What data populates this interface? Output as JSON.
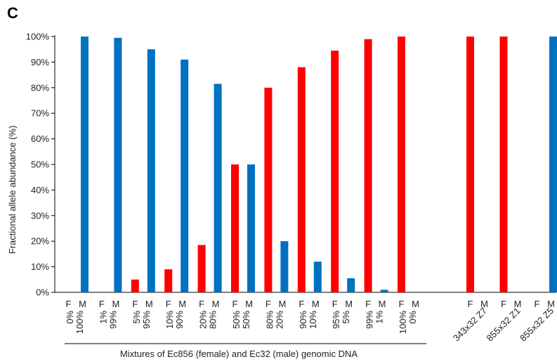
{
  "panel_label": "C",
  "chart_data": {
    "type": "bar",
    "ylabel": "Fractional allele abundance (%)",
    "xlabel": "Mixtures of Ec856 (female) and Ec32 (male) genomic DNA",
    "ylim": [
      0,
      100
    ],
    "yticks": [
      "0%",
      "10%",
      "20%",
      "30%",
      "40%",
      "50%",
      "60%",
      "70%",
      "80%",
      "90%",
      "100%"
    ],
    "bar_labels": [
      "F",
      "M"
    ],
    "colors": {
      "F": "#ff0000",
      "M": "#0070c0"
    },
    "groups": [
      {
        "label_top": "0%",
        "label_bottom": "100%",
        "F": 0,
        "M": 100
      },
      {
        "label_top": "1%",
        "label_bottom": "99%",
        "F": 0,
        "M": 99.5
      },
      {
        "label_top": "5%",
        "label_bottom": "95%",
        "F": 5,
        "M": 95
      },
      {
        "label_top": "10%",
        "label_bottom": "90%",
        "F": 9,
        "M": 91
      },
      {
        "label_top": "20%",
        "label_bottom": "80%",
        "F": 18.5,
        "M": 81.5
      },
      {
        "label_top": "50%",
        "label_bottom": "50%",
        "F": 50,
        "M": 50
      },
      {
        "label_top": "80%",
        "label_bottom": "20%",
        "F": 80,
        "M": 20
      },
      {
        "label_top": "90%",
        "label_bottom": "10%",
        "F": 88,
        "M": 12
      },
      {
        "label_top": "95%",
        "label_bottom": "5%",
        "F": 94.5,
        "M": 5.5
      },
      {
        "label_top": "99%",
        "label_bottom": "1%",
        "F": 99,
        "M": 1
      },
      {
        "label_top": "100%",
        "label_bottom": "0%",
        "F": 100,
        "M": 0
      }
    ],
    "samples": [
      {
        "label": "343x32 Z7",
        "F": 100,
        "M": 0
      },
      {
        "label": "855x32 Z1",
        "F": 100,
        "M": 0
      },
      {
        "label": "855x32 Z5",
        "F": 0,
        "M": 100
      }
    ]
  }
}
